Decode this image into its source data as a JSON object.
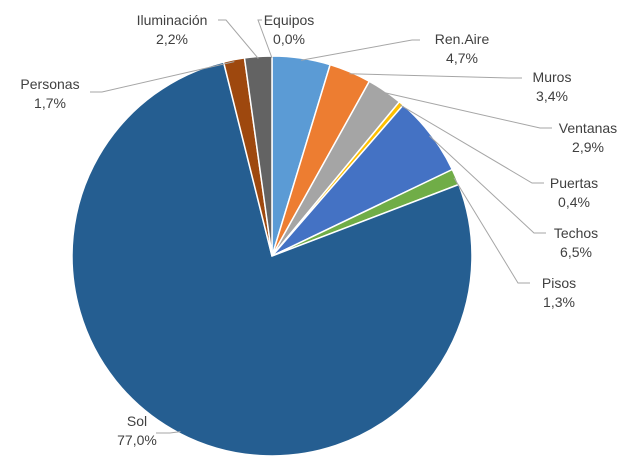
{
  "chart_data": {
    "type": "pie",
    "start_angle_deg": 0,
    "direction": "clockwise",
    "slices": [
      {
        "name": "Ren.Aire",
        "value": 4.7,
        "pct_label": "4,7%",
        "color": "#5b9bd5"
      },
      {
        "name": "Muros",
        "value": 3.4,
        "pct_label": "3,4%",
        "color": "#ed7d31"
      },
      {
        "name": "Ventanas",
        "value": 2.9,
        "pct_label": "2,9%",
        "color": "#a5a5a5"
      },
      {
        "name": "Puertas",
        "value": 0.4,
        "pct_label": "0,4%",
        "color": "#ffc000"
      },
      {
        "name": "Techos",
        "value": 6.5,
        "pct_label": "6,5%",
        "color": "#4472c4"
      },
      {
        "name": "Pisos",
        "value": 1.3,
        "pct_label": "1,3%",
        "color": "#70ad47"
      },
      {
        "name": "Sol",
        "value": 77.0,
        "pct_label": "77,0%",
        "color": "#255e91"
      },
      {
        "name": "Personas",
        "value": 1.7,
        "pct_label": "1,7%",
        "color": "#9e480e"
      },
      {
        "name": "Iluminación",
        "value": 2.2,
        "pct_label": "2,2%",
        "color": "#636363"
      },
      {
        "name": "Equipos",
        "value": 0.0,
        "pct_label": "0,0%",
        "color": "#997300"
      }
    ]
  }
}
